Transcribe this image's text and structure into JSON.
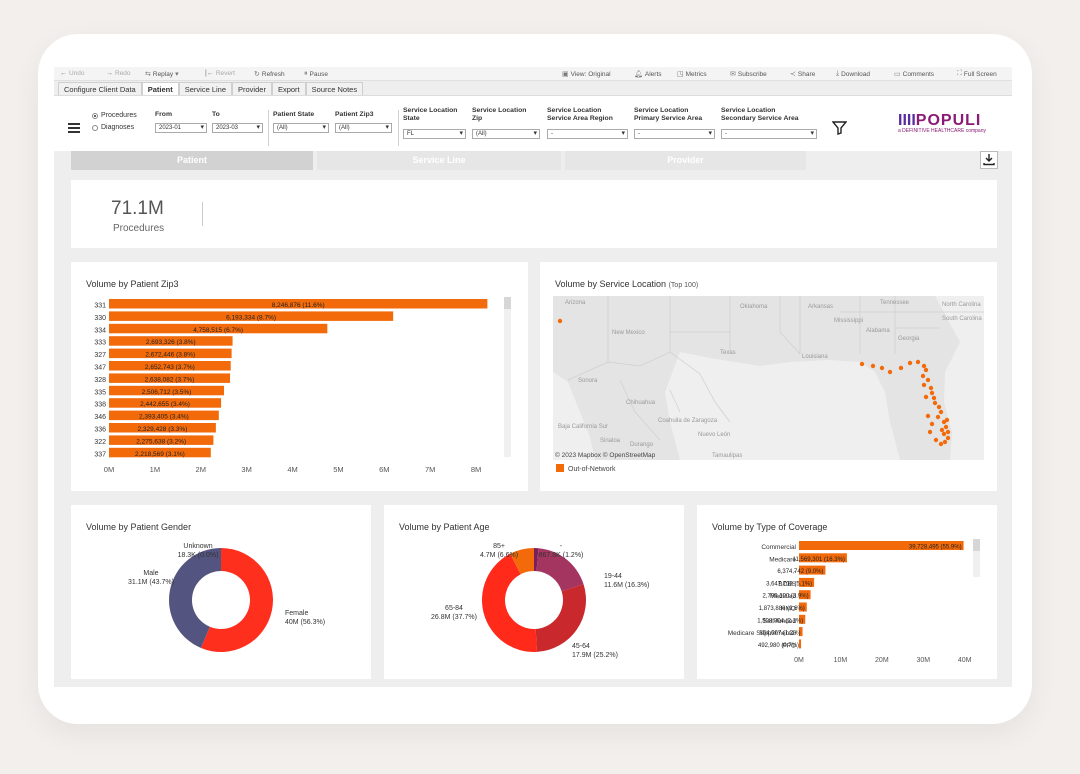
{
  "toolbar": {
    "undo": "Undo",
    "redo": "Redo",
    "replay": "Replay",
    "revert": "Revert",
    "refresh": "Refresh",
    "pause": "Pause",
    "view_original": "View: Original",
    "alerts": "Alerts",
    "metrics": "Metrics",
    "subscribe": "Subscribe",
    "share": "Share",
    "download": "Download",
    "comments": "Comments",
    "full_screen": "Full Screen"
  },
  "tabs": [
    "Configure Client Data",
    "Patient",
    "Service Line",
    "Provider",
    "Export",
    "Source Notes"
  ],
  "filters": {
    "radio_procedures": "Procedures",
    "radio_diagnoses": "Diagnoses",
    "from_label": "From",
    "from_value": "2023-01",
    "to_label": "To",
    "to_value": "2023-03",
    "patient_state_label": "Patient State",
    "patient_state_value": "(All)",
    "patient_zip3_label": "Patient Zip3",
    "patient_zip3_value": "(All)",
    "svc_state_label1": "Service Location",
    "svc_state_label2": "State",
    "svc_state_value": "FL",
    "svc_zip_label1": "Service Location",
    "svc_zip_label2": "Zip",
    "svc_zip_value": "(All)",
    "svc_region_label1": "Service Location",
    "svc_region_label2": "Service Area Region",
    "svc_region_value": "-",
    "svc_primary_label1": "Service Location",
    "svc_primary_label2": "Primary Service Area",
    "svc_primary_value": "-",
    "svc_secondary_label1": "Service Location",
    "svc_secondary_label2": "Secondary Service Area",
    "svc_secondary_value": "-"
  },
  "logo": {
    "brand": "POPULI",
    "bars": "IIII",
    "tagline": "a DEFINITIVE HEALTHCARE company"
  },
  "nav": [
    "Patient",
    "Service Line",
    "Provider"
  ],
  "kpi": {
    "value": "71.1M",
    "label": "Procedures"
  },
  "colors": {
    "accent": "#f26a0a",
    "male": "#545480",
    "female": "#ff2f1e",
    "map_bg": "#e6e6e6"
  },
  "zip3_chart": {
    "title": "Volume by Patient Zip3",
    "chart_data": {
      "type": "bar",
      "orientation": "horizontal",
      "categories": [
        "331",
        "330",
        "334",
        "333",
        "327",
        "347",
        "328",
        "335",
        "338",
        "346",
        "336",
        "322",
        "337"
      ],
      "values": [
        8246876,
        6193334,
        4758515,
        2693326,
        2672446,
        2652743,
        2638082,
        2506712,
        2442655,
        2393405,
        2329428,
        2275638,
        2218569
      ],
      "labels": [
        "8,246,876 (11.6%)",
        "6,193,334 (8.7%)",
        "4,758,515 (6.7%)",
        "2,693,326 (3.8%)",
        "2,672,446 (3.8%)",
        "2,652,743 (3.7%)",
        "2,638,082 (3.7%)",
        "2,506,712 (3.5%)",
        "2,442,655 (3.4%)",
        "2,393,405 (3.4%)",
        "2,329,428 (3.3%)",
        "2,275,638 (3.2%)",
        "2,218,569 (3.1%)"
      ],
      "xticks": [
        "0M",
        "1M",
        "2M",
        "3M",
        "4M",
        "5M",
        "6M",
        "7M",
        "8M"
      ],
      "xlim": [
        0,
        8500000
      ]
    }
  },
  "map": {
    "title": "Volume by Service Location",
    "title_suffix": "(Top 100)",
    "labels": [
      "Arizona",
      "New Mexico",
      "Oklahoma",
      "Arkansas",
      "Tennessee",
      "North Carolina",
      "South Carolina",
      "Alabama",
      "Georgia",
      "Texas",
      "Louisiana",
      "Sonora",
      "Chihuahua",
      "Coahuila de Zaragoza",
      "Nuevo León",
      "Tamaulipas",
      "Sinaloa",
      "Durango",
      "Baja California Sur",
      "Mississippi"
    ],
    "attribution": "© 2023 Mapbox  © OpenStreetMap",
    "legend": "Out-of-Network"
  },
  "gender_chart": {
    "title": "Volume by Patient Gender",
    "chart_data": {
      "type": "pie",
      "categories": [
        "Female",
        "Male",
        "Unknown"
      ],
      "values": [
        56.3,
        43.7,
        0.0
      ],
      "labels": [
        "40M (56.3%)",
        "31.1M (43.7%)",
        "18.3K (0.0%)"
      ]
    }
  },
  "age_chart": {
    "title": "Volume by Patient Age",
    "chart_data": {
      "type": "pie",
      "categories": [
        "-",
        "19-44",
        "45-64",
        "65-84",
        "85+"
      ],
      "values": [
        1.2,
        16.3,
        25.2,
        37.7,
        6.6
      ],
      "labels": [
        "867.8K (1.2%)",
        "11.6M (16.3%)",
        "17.9M (25.2%)",
        "26.8M (37.7%)",
        "4.7M (6.6%)"
      ]
    }
  },
  "coverage_chart": {
    "title": "Volume by Type of Coverage",
    "chart_data": {
      "type": "bar",
      "orientation": "horizontal",
      "categories": [
        "Commercial",
        "Medicare",
        "-",
        "BCBS",
        "Medicaid",
        "HMO",
        "Self-funded",
        "Medicare Supplemental",
        "PPO"
      ],
      "values": [
        39728495,
        11569301,
        6374742,
        3647703,
        2796100,
        1873886,
        1508904,
        854067,
        492980
      ],
      "labels": [
        "39,728,495 (55.9%)",
        "11,569,301 (16.3%)",
        "6,374,742 (9.0%)",
        "3,647,703 (5.1%)",
        "2,796,100 (3.9%)",
        "1,873,886 (2.6%)",
        "1,508,904 (2.1%)",
        "854,067 (1.2%)",
        "492,980 (0.7%)"
      ],
      "xticks": [
        "0M",
        "10M",
        "20M",
        "30M",
        "40M"
      ],
      "xlim": [
        0,
        42000000
      ]
    }
  }
}
